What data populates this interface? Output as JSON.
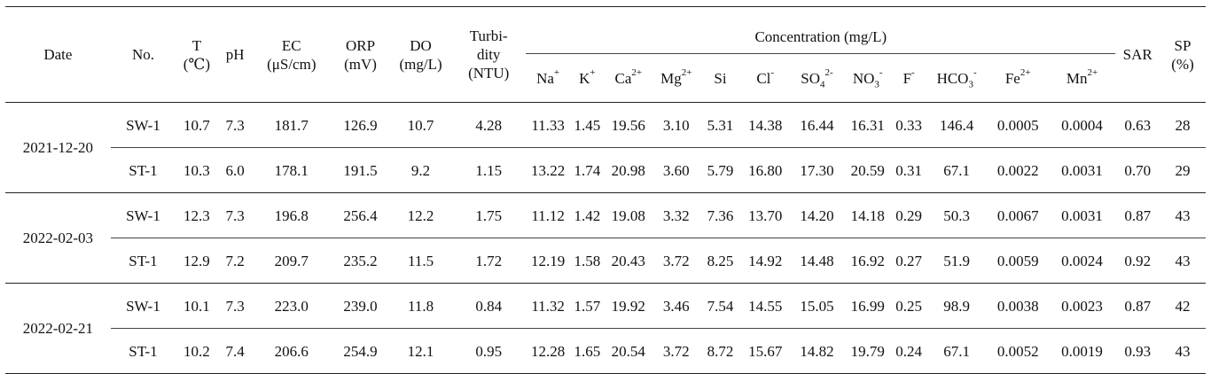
{
  "headers": {
    "date": "Date",
    "no": "No.",
    "t": [
      "T",
      "(℃)"
    ],
    "ph": "pH",
    "ec": [
      "EC",
      "(μS/cm)"
    ],
    "orp": [
      "ORP",
      "(mV)"
    ],
    "do": [
      "DO",
      "(mg/L)"
    ],
    "turbidity": [
      "Turbi-",
      "dity",
      "(NTU)"
    ],
    "concentration": "Concentration (mg/L)",
    "sar": "SAR",
    "sp": [
      "SP",
      "(%)"
    ],
    "ions": [
      {
        "base": "Na",
        "sup": "+",
        "sub": ""
      },
      {
        "base": "K",
        "sup": "+",
        "sub": ""
      },
      {
        "base": "Ca",
        "sup": "2+",
        "sub": ""
      },
      {
        "base": "Mg",
        "sup": "2+",
        "sub": ""
      },
      {
        "base": "Si",
        "sup": "",
        "sub": ""
      },
      {
        "base": "Cl",
        "sup": "-",
        "sub": ""
      },
      {
        "base": "SO",
        "sup": "2-",
        "sub": "4"
      },
      {
        "base": "NO",
        "sup": "-",
        "sub": "3"
      },
      {
        "base": "F",
        "sup": "-",
        "sub": ""
      },
      {
        "base": "HCO",
        "sup": "-",
        "sub": "3"
      },
      {
        "base": "Fe",
        "sup": "2+",
        "sub": ""
      },
      {
        "base": "Mn",
        "sup": "2+",
        "sub": ""
      }
    ]
  },
  "rows": [
    {
      "date": "2021-12-20",
      "no": "SW-1",
      "values": [
        "10.7",
        "7.3",
        "181.7",
        "126.9",
        "10.7",
        "4.28",
        "11.33",
        "1.45",
        "19.56",
        "3.10",
        "5.31",
        "14.38",
        "16.44",
        "16.31",
        "0.33",
        "146.4",
        "0.0005",
        "0.0004",
        "0.63",
        "28"
      ]
    },
    {
      "date": "2021-12-20",
      "no": "ST-1",
      "values": [
        "10.3",
        "6.0",
        "178.1",
        "191.5",
        "9.2",
        "1.15",
        "13.22",
        "1.74",
        "20.98",
        "3.60",
        "5.79",
        "16.80",
        "17.30",
        "20.59",
        "0.31",
        "67.1",
        "0.0022",
        "0.0031",
        "0.70",
        "29"
      ]
    },
    {
      "date": "2022-02-03",
      "no": "SW-1",
      "values": [
        "12.3",
        "7.3",
        "196.8",
        "256.4",
        "12.2",
        "1.75",
        "11.12",
        "1.42",
        "19.08",
        "3.32",
        "7.36",
        "13.70",
        "14.20",
        "14.18",
        "0.29",
        "50.3",
        "0.0067",
        "0.0031",
        "0.87",
        "43"
      ]
    },
    {
      "date": "2022-02-03",
      "no": "ST-1",
      "values": [
        "12.9",
        "7.2",
        "209.7",
        "235.2",
        "11.5",
        "1.72",
        "12.19",
        "1.58",
        "20.43",
        "3.72",
        "8.25",
        "14.92",
        "14.48",
        "16.92",
        "0.27",
        "51.9",
        "0.0059",
        "0.0024",
        "0.92",
        "43"
      ]
    },
    {
      "date": "2022-02-21",
      "no": "SW-1",
      "values": [
        "10.1",
        "7.3",
        "223.0",
        "239.0",
        "11.8",
        "0.84",
        "11.32",
        "1.57",
        "19.92",
        "3.46",
        "7.54",
        "14.55",
        "15.05",
        "16.99",
        "0.25",
        "98.9",
        "0.0038",
        "0.0023",
        "0.87",
        "42"
      ]
    },
    {
      "date": "2022-02-21",
      "no": "ST-1",
      "values": [
        "10.2",
        "7.4",
        "206.6",
        "254.9",
        "12.1",
        "0.95",
        "12.28",
        "1.65",
        "20.54",
        "3.72",
        "8.72",
        "15.67",
        "14.82",
        "19.79",
        "0.24",
        "67.1",
        "0.0052",
        "0.0019",
        "0.93",
        "43"
      ]
    }
  ]
}
